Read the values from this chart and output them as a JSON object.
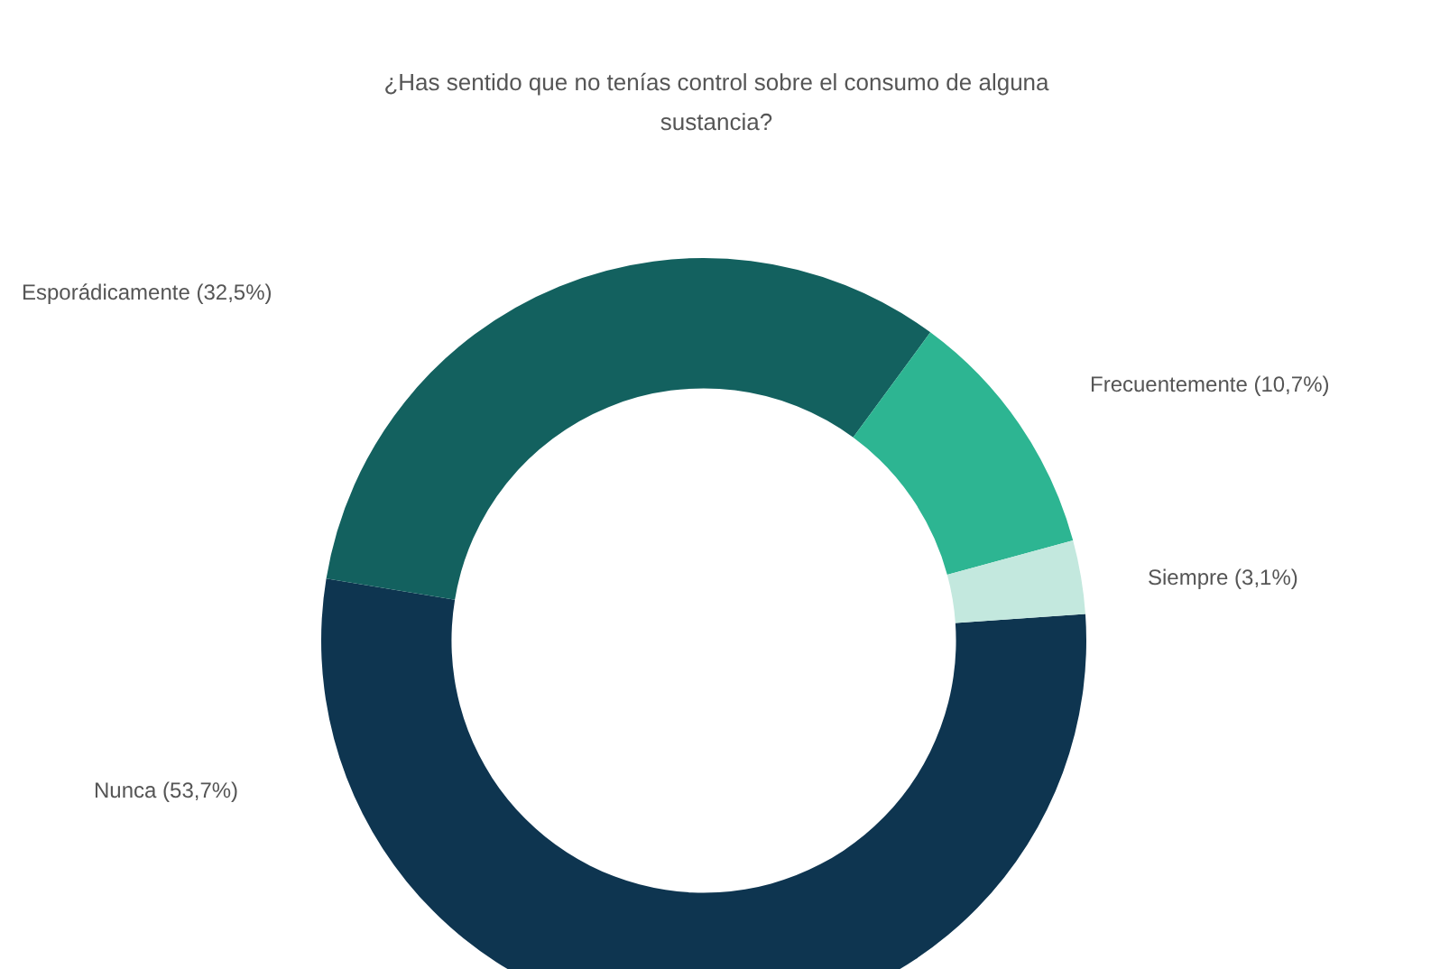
{
  "chart_data": {
    "type": "donut",
    "title": "¿Has sentido que no tenías control sobre el consumo de alguna sustancia?",
    "categories": [
      "Nunca (53,7%)",
      "Esporádicamente (32,5%)",
      "Frecuentemente (10,7%)",
      "Siempre (3,1%)"
    ],
    "values": [
      53.7,
      32.5,
      10.7,
      3.1
    ],
    "colors": [
      "#0e3550",
      "#13615f",
      "#2db592",
      "#c3e8de"
    ]
  }
}
